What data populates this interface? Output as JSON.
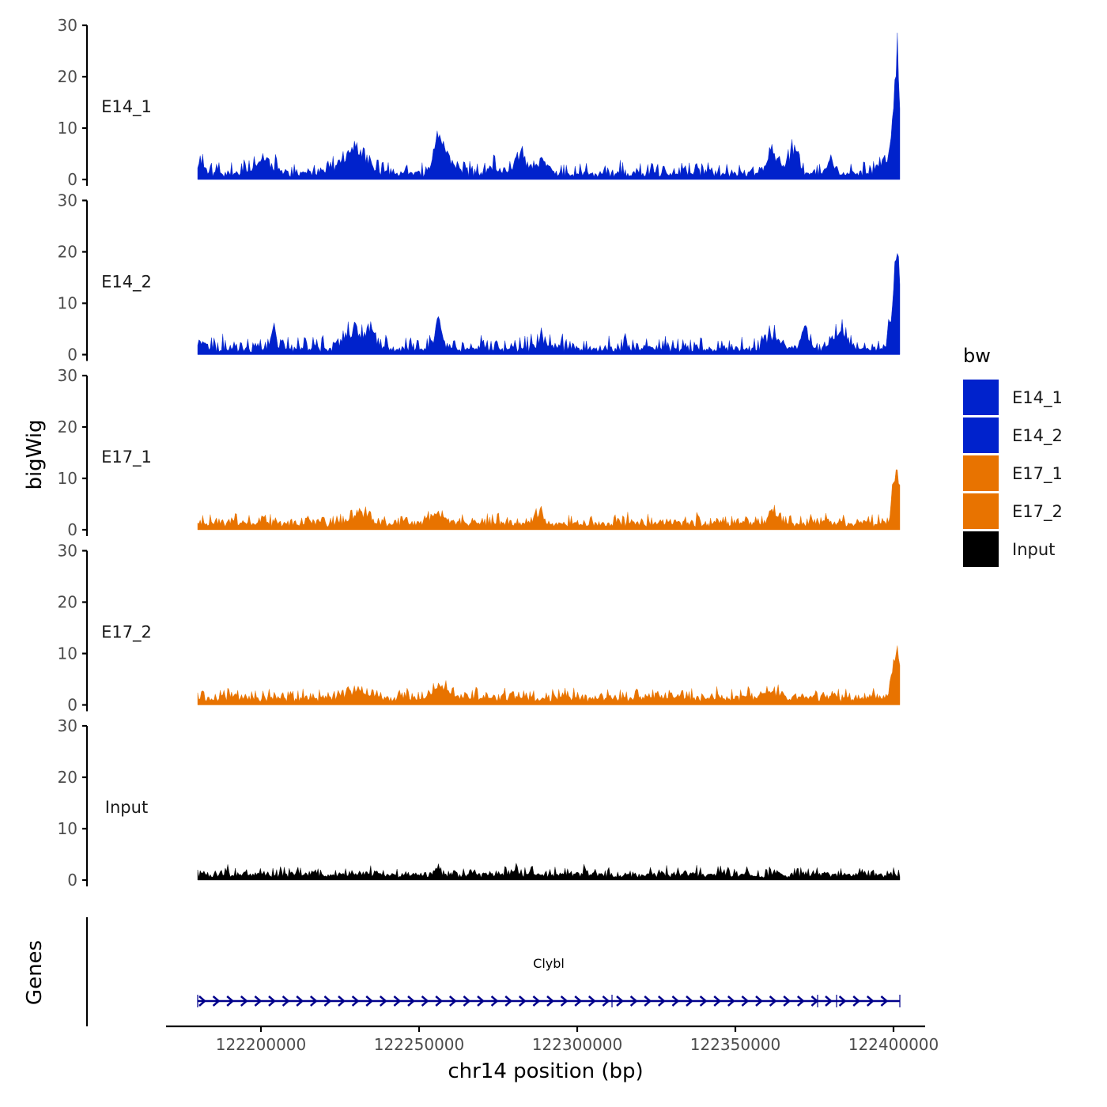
{
  "chart_data": {
    "type": "area",
    "y_axis_title": "bigWig",
    "x_axis_title": "chr14 position (bp)",
    "genes_axis_title": "Genes",
    "xlim": [
      122170000,
      122410000
    ],
    "data_range": [
      122180000,
      122402000
    ],
    "x_ticks": [
      {
        "value": 122200000,
        "label": "122200000"
      },
      {
        "value": 122250000,
        "label": "122250000"
      },
      {
        "value": 122300000,
        "label": "122300000"
      },
      {
        "value": 122350000,
        "label": "122350000"
      },
      {
        "value": 122400000,
        "label": "122400000"
      }
    ],
    "ylim": [
      0,
      30
    ],
    "y_ticks": [
      {
        "value": 0,
        "label": "0"
      },
      {
        "value": 10,
        "label": "10"
      },
      {
        "value": 20,
        "label": "20"
      },
      {
        "value": 30,
        "label": "30"
      }
    ],
    "legend": {
      "title": "bw",
      "entries": [
        {
          "label": "E14_1",
          "color": "#0022cc"
        },
        {
          "label": "E14_2",
          "color": "#0022cc"
        },
        {
          "label": "E17_1",
          "color": "#e87300"
        },
        {
          "label": "E17_2",
          "color": "#e87300"
        },
        {
          "label": "Input",
          "color": "#000000"
        }
      ]
    },
    "series": [
      {
        "name": "E14_1",
        "color": "#0022cc",
        "baseline": 1.0,
        "noise": 1.2,
        "seed": 11,
        "peaks": [
          {
            "x": 122181000,
            "h": 2.5,
            "w": 1500
          },
          {
            "x": 122201000,
            "h": 3,
            "w": 2500
          },
          {
            "x": 122229500,
            "h": 5.5,
            "w": 3500
          },
          {
            "x": 122256000,
            "h": 6.5,
            "w": 1500
          },
          {
            "x": 122259000,
            "h": 3.5,
            "w": 2500
          },
          {
            "x": 122273000,
            "h": 1.5,
            "w": 1500
          },
          {
            "x": 122282000,
            "h": 4,
            "w": 2000
          },
          {
            "x": 122289000,
            "h": 3,
            "w": 2000
          },
          {
            "x": 122362000,
            "h": 4.5,
            "w": 2000
          },
          {
            "x": 122368500,
            "h": 5,
            "w": 1500
          },
          {
            "x": 122380000,
            "h": 3,
            "w": 1000
          },
          {
            "x": 122397000,
            "h": 2.5,
            "w": 2000
          },
          {
            "x": 122401000,
            "h": 26,
            "w": 1200
          }
        ]
      },
      {
        "name": "E14_2",
        "color": "#0022cc",
        "baseline": 1.0,
        "noise": 1.3,
        "seed": 23,
        "peaks": [
          {
            "x": 122181000,
            "h": 1.5,
            "w": 1500
          },
          {
            "x": 122204000,
            "h": 6,
            "w": 700
          },
          {
            "x": 122229000,
            "h": 4,
            "w": 2500
          },
          {
            "x": 122235000,
            "h": 4,
            "w": 1500
          },
          {
            "x": 122256000,
            "h": 7.5,
            "w": 900
          },
          {
            "x": 122289000,
            "h": 2.5,
            "w": 1500
          },
          {
            "x": 122362000,
            "h": 3,
            "w": 2000
          },
          {
            "x": 122372000,
            "h": 5,
            "w": 1200
          },
          {
            "x": 122383000,
            "h": 4,
            "w": 2000
          },
          {
            "x": 122401000,
            "h": 20,
            "w": 1300
          }
        ]
      },
      {
        "name": "E17_1",
        "color": "#e87300",
        "baseline": 1.2,
        "noise": 0.9,
        "seed": 37,
        "peaks": [
          {
            "x": 122231000,
            "h": 2,
            "w": 3000
          },
          {
            "x": 122256000,
            "h": 2.2,
            "w": 2500
          },
          {
            "x": 122288000,
            "h": 2.5,
            "w": 1500
          },
          {
            "x": 122362000,
            "h": 2.5,
            "w": 1500
          },
          {
            "x": 122401000,
            "h": 12,
            "w": 1200
          }
        ]
      },
      {
        "name": "E17_2",
        "color": "#e87300",
        "baseline": 1.3,
        "noise": 0.9,
        "seed": 51,
        "peaks": [
          {
            "x": 122231000,
            "h": 1.5,
            "w": 3000
          },
          {
            "x": 122257000,
            "h": 2,
            "w": 3000
          },
          {
            "x": 122362000,
            "h": 1.5,
            "w": 2000
          },
          {
            "x": 122401000,
            "h": 11,
            "w": 1200
          }
        ]
      },
      {
        "name": "Input",
        "color": "#000000",
        "baseline": 1.0,
        "noise": 0.8,
        "seed": 73,
        "peaks": [
          {
            "x": 122256000,
            "h": 2,
            "w": 500
          },
          {
            "x": 122280000,
            "h": 1,
            "w": 1500
          }
        ]
      }
    ],
    "gene": {
      "name": "Clybl",
      "start": 122180000,
      "end": 122402000,
      "strand": "+",
      "color": "#00008b"
    }
  }
}
